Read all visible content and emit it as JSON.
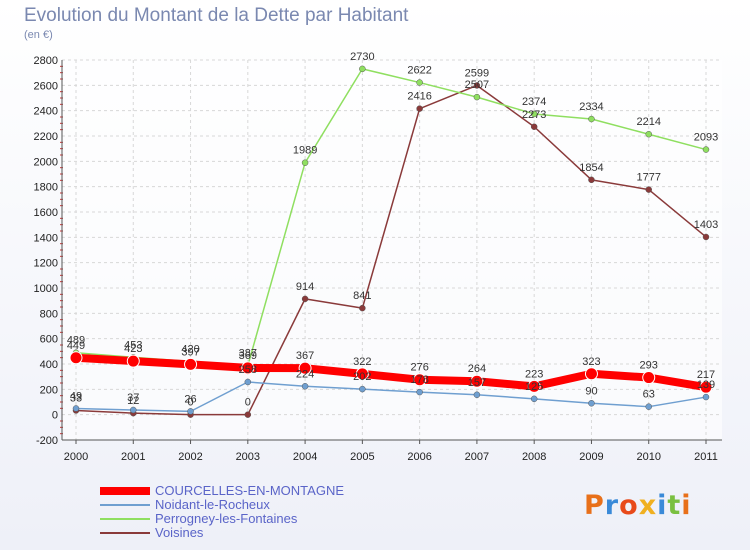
{
  "chart_data": {
    "type": "line",
    "title": "Evolution du Montant de la Dette par Habitant",
    "subtitle": "(en €)",
    "categories": [
      "2000",
      "2001",
      "2002",
      "2003",
      "2004",
      "2005",
      "2006",
      "2007",
      "2008",
      "2009",
      "2010",
      "2011"
    ],
    "yticks": [
      "-200",
      "0",
      "200",
      "400",
      "600",
      "800",
      "1000",
      "1200",
      "1400",
      "1600",
      "1800",
      "2000",
      "2200",
      "2400",
      "2600",
      "2800"
    ],
    "ylim": [
      -200,
      2800
    ],
    "series": [
      {
        "name": "COURCELLES-EN-MONTAGNE",
        "color": "#ff0000",
        "values": [
          449,
          423,
          397,
          369,
          367,
          322,
          276,
          264,
          223,
          323,
          293,
          217
        ],
        "labels": [
          "449",
          "423",
          "397",
          "369",
          "367",
          "322",
          "276",
          "264",
          "223",
          "323",
          "293",
          "217"
        ]
      },
      {
        "name": "Noidant-le-Rocheux",
        "color": "#6f9fd0",
        "values": [
          49,
          37,
          26,
          258,
          224,
          202,
          178,
          157,
          125,
          90,
          63,
          139
        ],
        "labels": [
          "49",
          "37",
          "26",
          "258",
          "224",
          "202",
          "178",
          "157",
          "125",
          "90",
          "63",
          "139"
        ]
      },
      {
        "name": "Perrogney-les-Fontaines",
        "color": "#8fdf60",
        "values": [
          489,
          453,
          420,
          387,
          1989,
          2730,
          2622,
          2507,
          2374,
          2334,
          2214,
          2093
        ],
        "labels": [
          "489",
          "453",
          "420",
          "387",
          "1989",
          "2730",
          "2622",
          "2507",
          "2374",
          "2334",
          "2214",
          "2093"
        ]
      },
      {
        "name": "Voisines",
        "color": "#8a3a3a",
        "values": [
          33,
          12,
          0,
          0,
          914,
          841,
          2416,
          2599,
          2273,
          1854,
          1777,
          1403
        ],
        "labels": [
          "33",
          "12",
          "0",
          "0",
          "914",
          "841",
          "2416",
          "2599",
          "2273",
          "1854",
          "1777",
          "1403"
        ]
      }
    ],
    "logo_text": "Proxiti"
  }
}
